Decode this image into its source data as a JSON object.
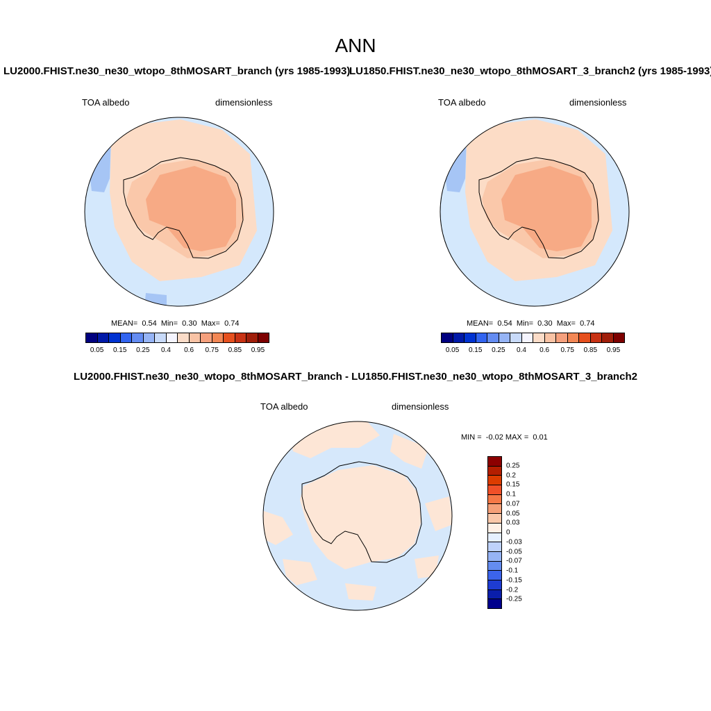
{
  "title": "ANN",
  "panels": [
    {
      "title": "LU2000.FHIST.ne30_ne30_wtopo_8thMOSART_branch (yrs 1985-1993)",
      "left_label": "TOA albedo",
      "right_label": "dimensionless",
      "stats": {
        "mean_label": "MEAN=",
        "mean": "0.54",
        "min_label": "Min=",
        "min": "0.30",
        "max_label": "Max=",
        "max": "0.74"
      }
    },
    {
      "title": "LU1850.FHIST.ne30_ne30_wtopo_8thMOSART_3_branch2 (yrs 1985-1993)",
      "left_label": "TOA albedo",
      "right_label": "dimensionless",
      "stats": {
        "mean_label": "MEAN=",
        "mean": "0.54",
        "min_label": "Min=",
        "min": "0.30",
        "max_label": "Max=",
        "max": "0.74"
      }
    }
  ],
  "colorbar": {
    "colors": [
      "#00007f",
      "#0019a8",
      "#0032d1",
      "#3264f0",
      "#648cf2",
      "#96b4f5",
      "#c8daf9",
      "#f5f5ff",
      "#fbdcc8",
      "#f9c3a5",
      "#f5a07d",
      "#f28755",
      "#e6501e",
      "#c83214",
      "#a01e0a",
      "#7d0000"
    ],
    "ticks": [
      "0.05",
      "0.15",
      "0.25",
      "0.4",
      "0.6",
      "0.75",
      "0.85",
      "0.95"
    ]
  },
  "diff": {
    "title": "LU2000.FHIST.ne30_ne30_wtopo_8thMOSART_branch - LU1850.FHIST.ne30_ne30_wtopo_8thMOSART_3_branch2",
    "left_label": "TOA albedo",
    "right_label": "dimensionless",
    "minmax": {
      "min_label": "MIN =",
      "min": "-0.02",
      "max_label": "MAX =",
      "max": "0.01"
    },
    "colors": [
      "#8c0000",
      "#b41e00",
      "#dc3c00",
      "#f05028",
      "#f57846",
      "#f5a078",
      "#fac8aa",
      "#fff0e6",
      "#e6f0ff",
      "#bed2fa",
      "#96b4f5",
      "#648cf0",
      "#3c64eb",
      "#1e3cd2",
      "#0a1eaa",
      "#00008c"
    ],
    "ticks": [
      "0.25",
      "0.2",
      "0.15",
      "0.1",
      "0.07",
      "0.05",
      "0.03",
      "0",
      "-0.03",
      "-0.05",
      "-0.07",
      "-0.1",
      "-0.15",
      "-0.2",
      "-0.25"
    ]
  },
  "map_colors": {
    "ocean": "#d4e8fc",
    "sea_ice": "#fcdcc6",
    "coast": "#fac8aa",
    "ice_sheet": "#f7aa85",
    "blue_patch": "#a6c5f5",
    "diff_ocean": "#d6e8fb",
    "diff_pos": "#fde6d6"
  }
}
